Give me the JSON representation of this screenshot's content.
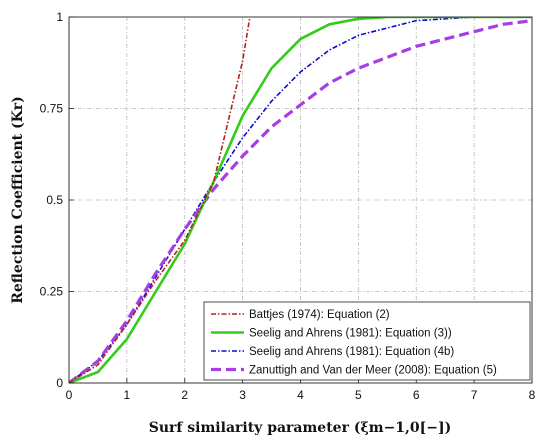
{
  "chart_data": {
    "type": "line",
    "xlabel": "Surf similarity parameter  (ξm−1,0[−])",
    "ylabel": "Reflection Coefficient  (Kr)",
    "xlim": [
      0,
      8
    ],
    "ylim": [
      0,
      1
    ],
    "x_ticks": [
      "0",
      "1",
      "2",
      "3",
      "4",
      "5",
      "6",
      "7",
      "8"
    ],
    "y_ticks": [
      "0",
      "0.25",
      "0.5",
      "0.75",
      "1"
    ],
    "grid": true,
    "legend_position": "bottom-right",
    "series": [
      {
        "name": "Battjes (1974): Equation (2)",
        "color": "#b22222",
        "style": "dash-dot",
        "x": [
          0,
          0.5,
          1,
          1.5,
          2,
          2.5,
          3,
          3.125
        ],
        "y": [
          0,
          0.05,
          0.16,
          0.28,
          0.39,
          0.55,
          0.88,
          1.0
        ]
      },
      {
        "name": "Seelig and Ahrens (1981): Equation (3))",
        "color": "#33cc1a",
        "style": "solid",
        "x": [
          0,
          0.5,
          1,
          1.5,
          2,
          2.5,
          3,
          3.5,
          4,
          4.5,
          5,
          5.5,
          6,
          7,
          8
        ],
        "y": [
          0,
          0.03,
          0.12,
          0.25,
          0.38,
          0.55,
          0.73,
          0.86,
          0.94,
          0.98,
          0.995,
          1.0,
          1.0,
          1.0,
          1.0
        ]
      },
      {
        "name": "Seelig and Ahrens (1981): Equation (4b)",
        "color": "#0a0ad6",
        "style": "dash-dot",
        "x": [
          0,
          0.5,
          1,
          1.5,
          2,
          2.5,
          3,
          3.5,
          4,
          4.5,
          5,
          5.5,
          6,
          7,
          8
        ],
        "y": [
          0,
          0.06,
          0.16,
          0.29,
          0.42,
          0.55,
          0.67,
          0.77,
          0.85,
          0.91,
          0.95,
          0.97,
          0.99,
          1.0,
          1.0
        ]
      },
      {
        "name": "Zanuttigh and Van der Meer (2008): Equation (5)",
        "color": "#a63ee6",
        "style": "dashed",
        "x": [
          0,
          0.5,
          1,
          1.5,
          2,
          2.5,
          3,
          3.5,
          4,
          4.5,
          5,
          5.5,
          6,
          6.5,
          7,
          7.5,
          8
        ],
        "y": [
          0,
          0.06,
          0.17,
          0.3,
          0.42,
          0.53,
          0.62,
          0.7,
          0.76,
          0.82,
          0.86,
          0.89,
          0.92,
          0.94,
          0.96,
          0.98,
          0.99
        ]
      }
    ]
  }
}
